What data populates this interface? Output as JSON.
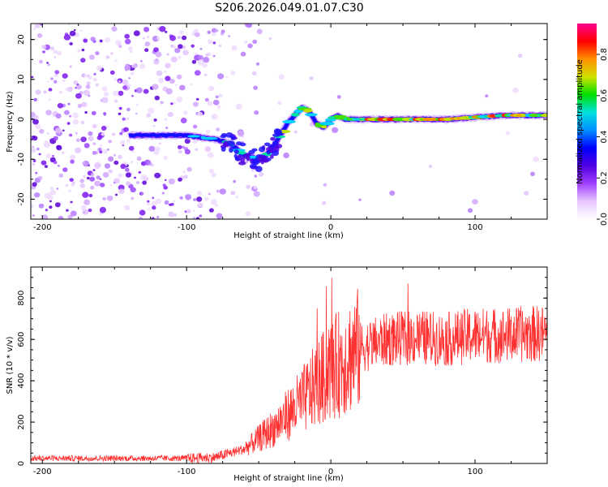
{
  "figure_title": "S206.2026.049.01.07.C30",
  "chart_data": [
    {
      "type": "heatmap",
      "title": "S206.2026.049.01.07.C30",
      "xlabel": "Height of straight line (km)",
      "ylabel": "Frequency (Hz)",
      "xlim": [
        -208,
        150
      ],
      "ylim": [
        -25,
        24
      ],
      "xticks": [
        -200,
        -100,
        0,
        100
      ],
      "xtick_labels": [
        "-200",
        "-100",
        "0",
        "100"
      ],
      "yticks": [
        20,
        10,
        0,
        -10,
        -20
      ],
      "ytick_labels": [
        "20",
        "10",
        "0",
        "-10",
        "-20"
      ],
      "colorbar": {
        "label": "Normalized spectral amplitude",
        "range": [
          0.0,
          0.95
        ],
        "ticks": [
          0.0,
          0.2,
          0.4,
          0.6,
          0.8
        ],
        "tick_labels": [
          "0.0",
          "0.2",
          "0.4",
          "0.6",
          "0.8"
        ],
        "colormap": [
          "#ffffff",
          "#e8c8ff",
          "#a040ff",
          "#5000e0",
          "#0000ff",
          "#0090ff",
          "#00e0e0",
          "#00e000",
          "#d0e000",
          "#ff9000",
          "#ff0000",
          "#ff0090"
        ]
      },
      "ridge": {
        "description_points_x": [
          -100,
          -80,
          -70,
          -60,
          -50,
          -45,
          -40,
          -35,
          -30,
          -25,
          -20,
          -15,
          -10,
          -5,
          0,
          5,
          10,
          20,
          50,
          80,
          100,
          120,
          150
        ],
        "description_points_y": [
          -4,
          -5,
          -6,
          -9,
          -10,
          -9,
          -7,
          -4,
          -1,
          1,
          3,
          2,
          -1,
          -2,
          0,
          1,
          0,
          0,
          0,
          0,
          0.5,
          1,
          1
        ]
      }
    },
    {
      "type": "line",
      "xlabel": "Height of straight line (km)",
      "ylabel": "SNR (10 * v/v)",
      "xlim": [
        -208,
        150
      ],
      "ylim": [
        0,
        950
      ],
      "xticks": [
        -200,
        -100,
        0,
        100
      ],
      "xtick_labels": [
        "-200",
        "-100",
        "0",
        "100"
      ],
      "yticks": [
        0,
        200,
        400,
        600,
        800
      ],
      "ytick_labels": [
        "0",
        "200",
        "400",
        "600",
        "800"
      ],
      "color": "#ff3030",
      "trend_x": [
        -208,
        -100,
        -80,
        -60,
        -40,
        -20,
        -10,
        0,
        20,
        40,
        60,
        80,
        100,
        120,
        150
      ],
      "trend_y": [
        25,
        25,
        30,
        70,
        170,
        300,
        380,
        450,
        560,
        600,
        610,
        600,
        620,
        620,
        630
      ]
    }
  ]
}
